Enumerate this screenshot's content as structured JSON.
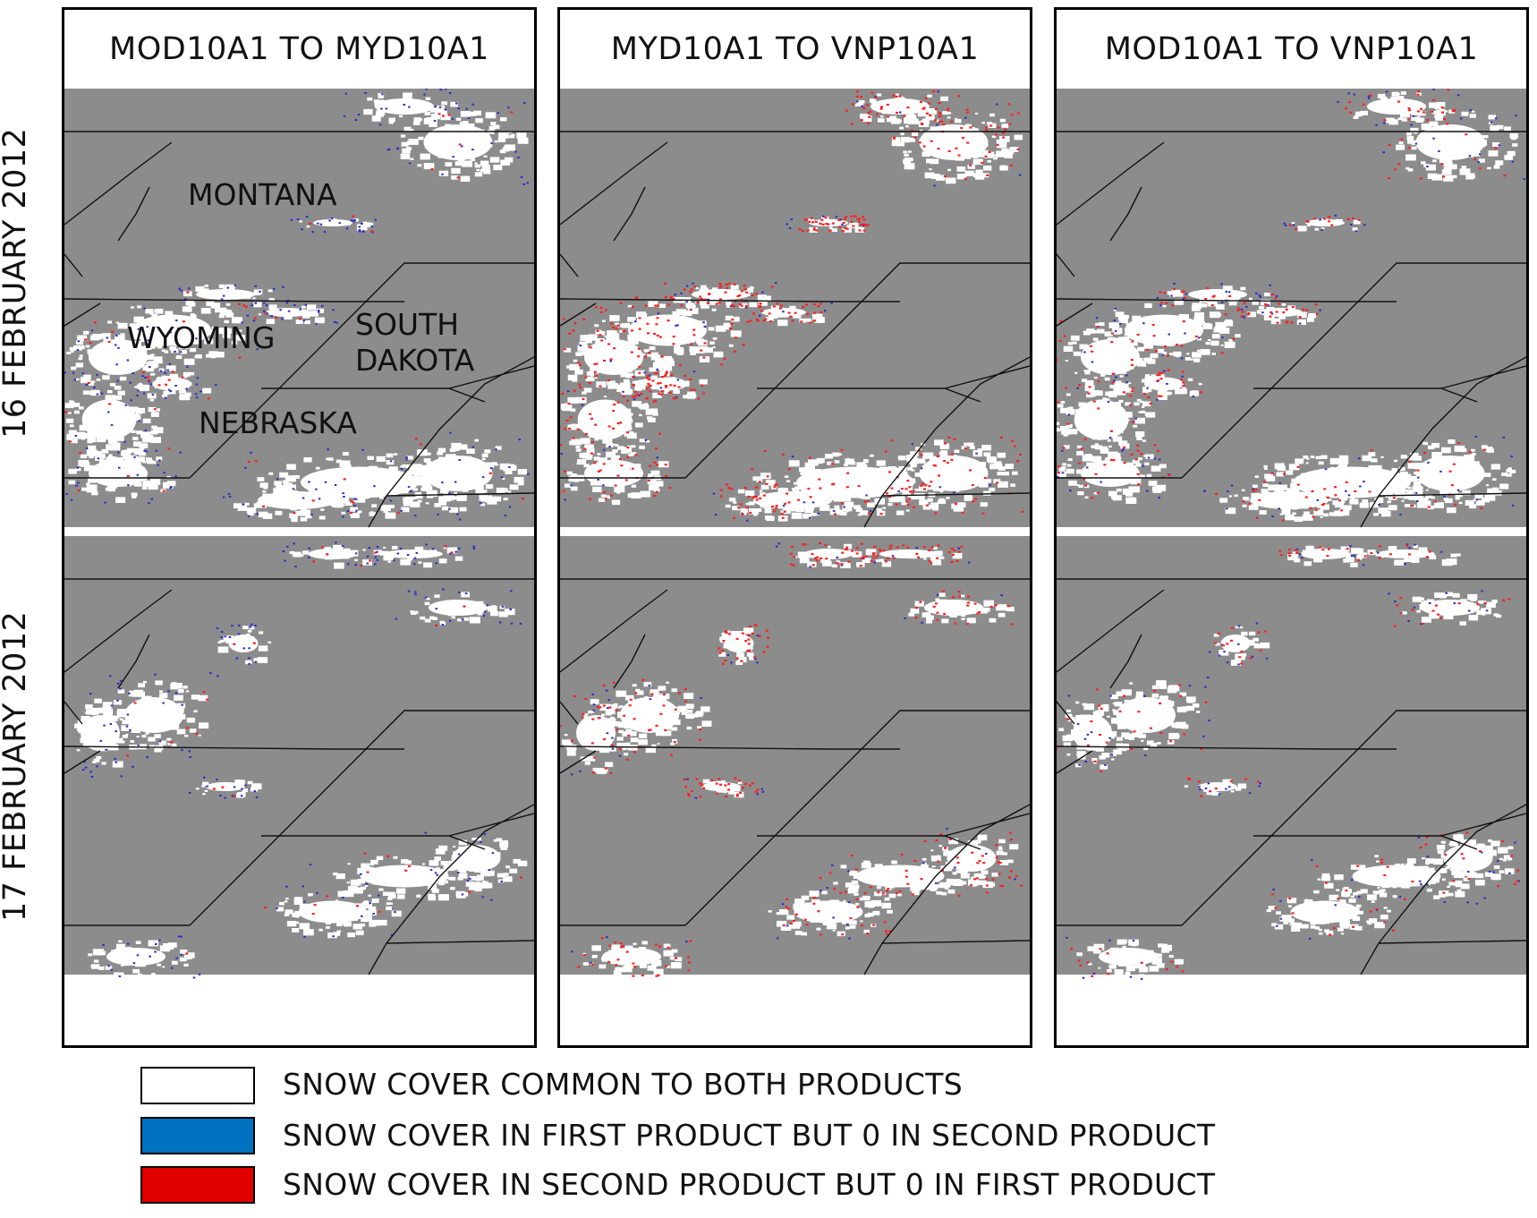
{
  "columns": [
    {
      "title": "MOD10A1 TO MYD10A1"
    },
    {
      "title": "MYD10A1 TO VNP10A1"
    },
    {
      "title": "MOD10A1 TO VNP10A1"
    }
  ],
  "rows": [
    {
      "label": "16 FEBRUARY 2012"
    },
    {
      "label": "17 FEBRUARY 2012"
    }
  ],
  "state_labels": {
    "montana": "MONTANA",
    "wyoming": "WYOMING",
    "south": "SOUTH",
    "dakota": "DAKOTA",
    "nebraska": "NEBRASKA"
  },
  "legend": [
    {
      "label": "SNOW COVER COMMON TO BOTH PRODUCTS",
      "color": "#ffffff"
    },
    {
      "label": "SNOW COVER IN FIRST  PRODUCT BUT 0 IN SECOND PRODUCT",
      "color": "#0070c0"
    },
    {
      "label": "SNOW COVER IN SECOND PRODUCT BUT 0 IN FIRST PRODUCT",
      "color": "#e00000"
    }
  ],
  "colors": {
    "background": "#8c8c8c",
    "snow_common": "#ffffff",
    "first_only": "#2a2ad0",
    "second_only": "#ff2020",
    "borders": "#111111"
  }
}
